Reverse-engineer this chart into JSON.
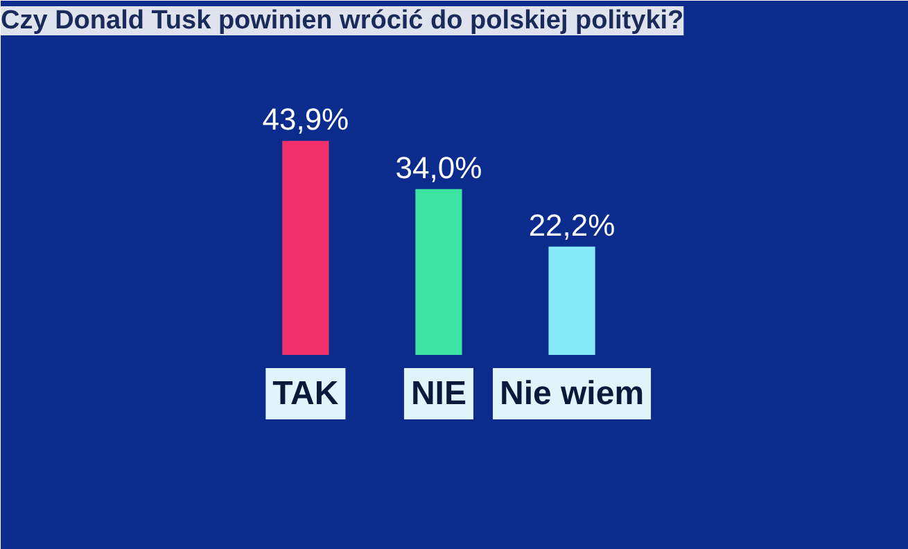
{
  "chart_data": {
    "type": "bar",
    "title": "Czy Donald Tusk powinien wrócić do polskiej polityki?",
    "categories": [
      "TAK",
      "NIE",
      "Nie wiem"
    ],
    "values": [
      43.9,
      34.0,
      22.2
    ],
    "colors": [
      "#f2306c",
      "#3de3a0",
      "#86e9f7"
    ],
    "value_labels": [
      "43,9%",
      "34,0%",
      "22,2%"
    ]
  }
}
